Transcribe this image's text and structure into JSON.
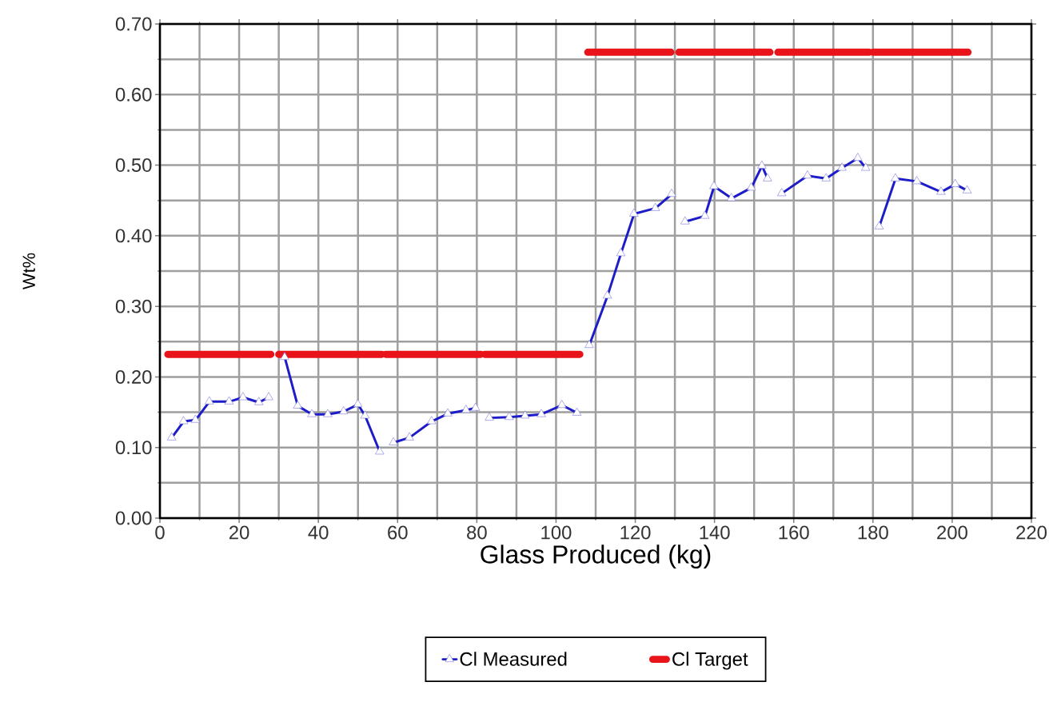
{
  "chart_data": {
    "type": "line",
    "xlabel": "Glass Produced (kg)",
    "ylabel": "Wt%",
    "xlim": [
      0,
      220
    ],
    "xticks": [
      0,
      20,
      40,
      60,
      80,
      100,
      120,
      140,
      160,
      180,
      200,
      220
    ],
    "ylim": [
      0,
      0.7
    ],
    "yticks": [
      {
        "value": 0,
        "label": "0.00"
      },
      {
        "value": 0.1,
        "label": "0.10"
      },
      {
        "value": 0.2,
        "label": "0.20"
      },
      {
        "value": 0.3,
        "label": "0.30"
      },
      {
        "value": 0.4,
        "label": "0.40"
      },
      {
        "value": 0.5,
        "label": "0.50"
      },
      {
        "value": 0.6,
        "label": "0.60"
      },
      {
        "value": 0.7,
        "label": "0.70"
      }
    ],
    "grid": true,
    "legend": "bottom",
    "series": [
      {
        "name": "Cl Measured",
        "color": "#1c1cc8",
        "marker": "triangle",
        "x": [
          3.0,
          6.0,
          9.0,
          12.5,
          17.5,
          21.0,
          25.0,
          27.5,
          29.5,
          31.5,
          34.8,
          38.4,
          42.4,
          46.4,
          50.0,
          51.8,
          55.5,
          57.0,
          59.0,
          63.0,
          68.6,
          72.7,
          77.3,
          79.7,
          81.5,
          83.2,
          88.2,
          92.2,
          96.3,
          101.5,
          105.3,
          107.0,
          108.4,
          113.0,
          116.4,
          119.7,
          125.1,
          129.2,
          131.0,
          132.6,
          137.6,
          139.9,
          144.3,
          149.3,
          152.0,
          153.4,
          155.0,
          157.0,
          163.5,
          168.2,
          172.2,
          176.2,
          178.2,
          180.0,
          181.6,
          185.7,
          191.1,
          197.2,
          200.8,
          203.8
        ],
        "values": [
          0.114,
          0.137,
          0.139,
          0.165,
          0.165,
          0.171,
          0.164,
          0.171,
          null,
          0.228,
          0.159,
          0.147,
          0.147,
          0.151,
          0.161,
          0.145,
          0.094,
          null,
          0.107,
          0.114,
          0.137,
          0.148,
          0.153,
          0.156,
          null,
          0.142,
          0.143,
          0.145,
          0.147,
          0.16,
          0.149,
          null,
          0.245,
          0.315,
          0.375,
          0.431,
          0.439,
          0.459,
          null,
          0.42,
          0.428,
          0.47,
          0.453,
          0.468,
          0.499,
          0.481,
          null,
          0.46,
          0.485,
          0.481,
          0.496,
          0.51,
          0.496,
          null,
          0.413,
          0.481,
          0.477,
          0.462,
          0.473,
          0.464
        ]
      },
      {
        "name": "Cl Target",
        "color": "#e8141a",
        "marker": "none",
        "x": [
          2,
          28,
          29,
          30,
          56,
          56.5,
          57,
          81,
          81.5,
          82,
          106,
          107,
          108,
          129,
          130,
          131,
          154,
          155,
          156,
          179,
          179.5,
          180,
          204
        ],
        "values": [
          0.232,
          0.232,
          null,
          0.232,
          0.232,
          null,
          0.232,
          0.232,
          null,
          0.232,
          0.232,
          null,
          0.66,
          0.66,
          null,
          0.66,
          0.66,
          null,
          0.66,
          0.66,
          null,
          0.66,
          0.66
        ]
      }
    ]
  }
}
